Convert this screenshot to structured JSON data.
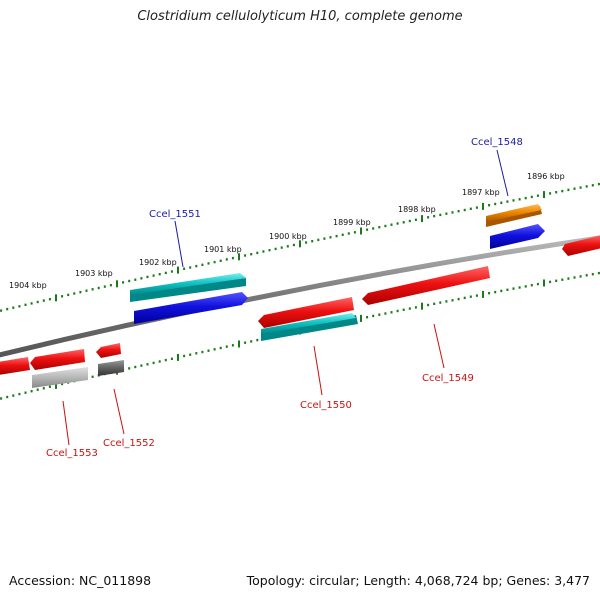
{
  "title": "Clostridium cellulolyticum H10, complete genome",
  "footer": {
    "accession": "Accession: NC_011898",
    "stats": "Topology: circular; Length: 4,068,724 bp; Genes: 3,477"
  },
  "scale_labels": [
    "1904 kbp",
    "1903 kbp",
    "1902 kbp",
    "1901 kbp",
    "1900 kbp",
    "1899 kbp",
    "1898 kbp",
    "1897 kbp",
    "1896 kbp"
  ],
  "gene_labels": [
    {
      "id": "g1551",
      "text": "Ccel_1551",
      "color": "#1a1aa6"
    },
    {
      "id": "g1548",
      "text": "Ccel_1548",
      "color": "#1a1aa6"
    },
    {
      "id": "g1550",
      "text": "Ccel_1550",
      "color": "#cc1111"
    },
    {
      "id": "g1549",
      "text": "Ccel_1549",
      "color": "#cc1111"
    },
    {
      "id": "g1552",
      "text": "Ccel_1552",
      "color": "#cc1111"
    },
    {
      "id": "g1553",
      "text": "Ccel_1553",
      "color": "#cc1111"
    }
  ],
  "colors": {
    "backbone": "#7a7a7a",
    "scale": "#1a7a1a",
    "gene_red": "#ee1111",
    "gene_blue": "#1111dd",
    "gene_cyan": "#11c4c4",
    "gene_orange": "#ee8800",
    "gene_gray_light": "#bbbbbb",
    "gene_gray_dark": "#666666"
  }
}
